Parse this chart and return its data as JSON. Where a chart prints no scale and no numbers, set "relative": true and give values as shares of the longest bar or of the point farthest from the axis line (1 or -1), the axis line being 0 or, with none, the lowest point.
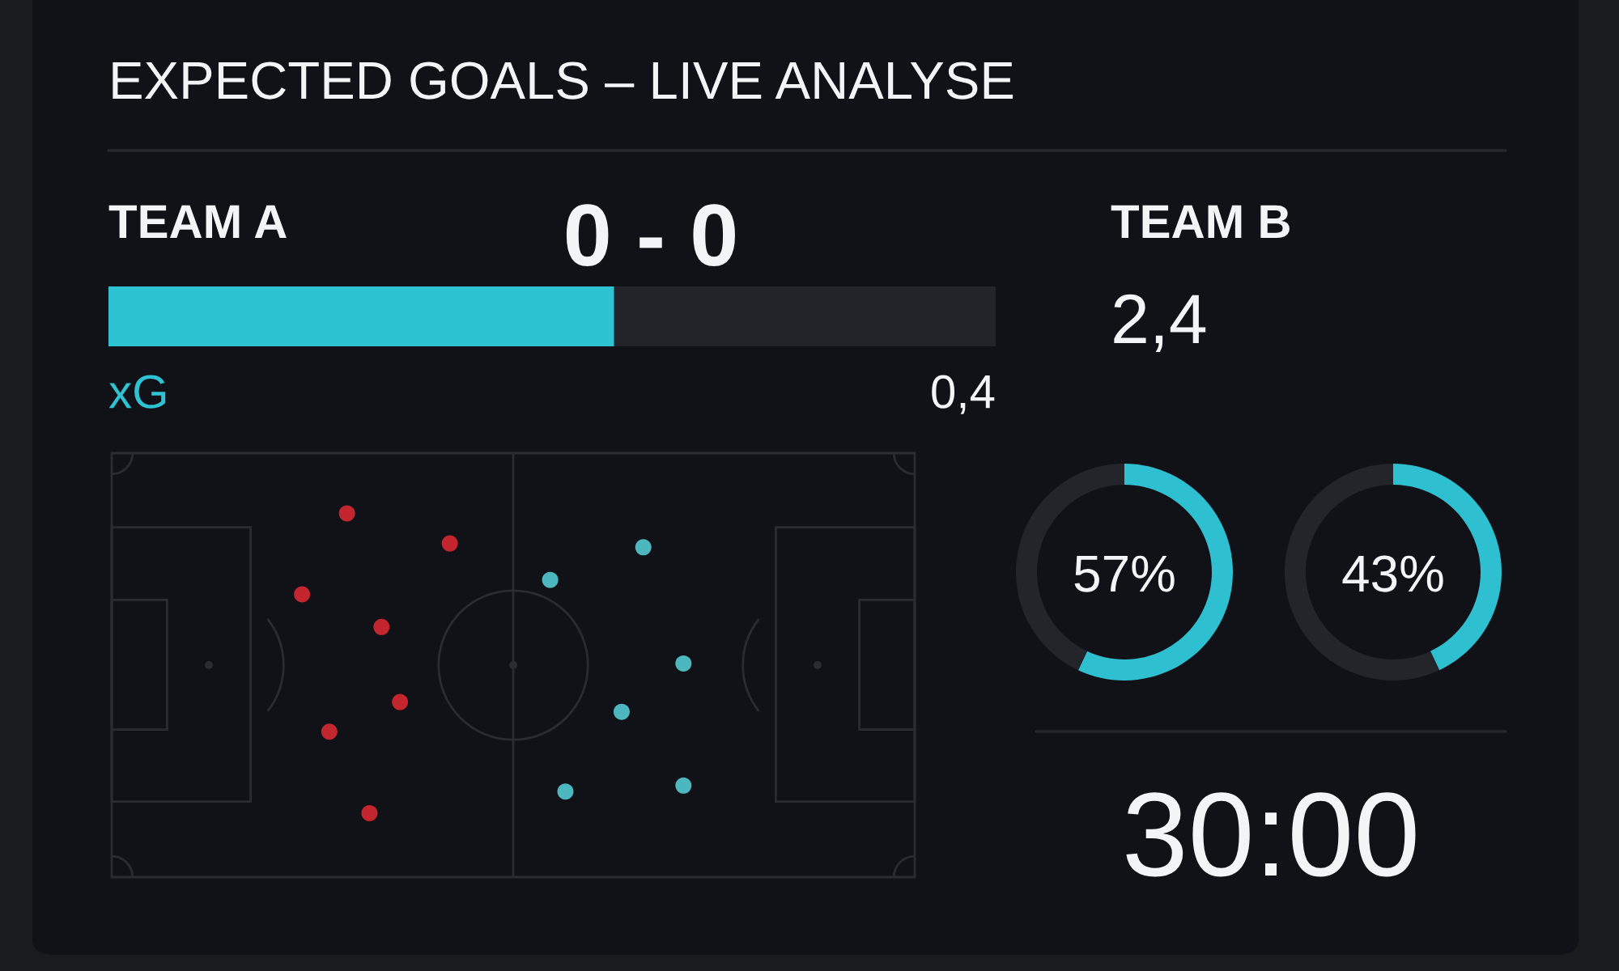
{
  "chart_data": [
    {
      "type": "other",
      "title": "EXPECTED GOALS – LIVE ANALYSE",
      "annotations": [
        "TEAM A",
        "0 - 0",
        "TEAM B",
        "2,4",
        "30:00"
      ]
    },
    {
      "type": "bar",
      "orientation": "horizontal",
      "stacked": true,
      "relative": true,
      "categories": [
        null
      ],
      "series": [
        {
          "name": "xG",
          "color": "#2ec3d3",
          "values": [
            0.57
          ]
        },
        {
          "color": "#232429",
          "values": [
            0.43
          ]
        }
      ],
      "annotations": [
        "0,4"
      ]
    },
    {
      "type": "donut",
      "categories": [
        null,
        null
      ],
      "values": [
        57,
        43
      ],
      "colors": [
        "#2ec0d0",
        "#24252a"
      ],
      "annotations": [
        "57%"
      ]
    },
    {
      "type": "donut",
      "categories": [
        null,
        null
      ],
      "values": [
        43,
        57
      ],
      "colors": [
        "#2ec0d0",
        "#24252a"
      ],
      "annotations": [
        "43%"
      ]
    }
  ]
}
